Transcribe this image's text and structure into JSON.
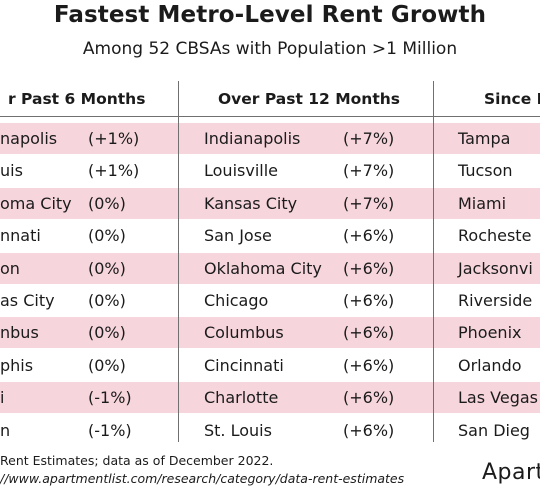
{
  "chart_data": {
    "type": "table",
    "title": "Fastest Metro-Level Rent Growth",
    "subtitle": "Among 52 CBSAs with Population >1 Million",
    "columns": [
      {
        "header": "r Past 6 Months",
        "rows": [
          {
            "metro": "napolis",
            "growth": "(+1%)"
          },
          {
            "metro": "uis",
            "growth": "(+1%)"
          },
          {
            "metro": "oma City",
            "growth": "(0%)"
          },
          {
            "metro": "nnati",
            "growth": "(0%)"
          },
          {
            "metro": "on",
            "growth": "(0%)"
          },
          {
            "metro": "as City",
            "growth": "(0%)"
          },
          {
            "metro": "nbus",
            "growth": "(0%)"
          },
          {
            "metro": "phis",
            "growth": "(0%)"
          },
          {
            "metro": "i",
            "growth": "(-1%)"
          },
          {
            "metro": "n",
            "growth": "(-1%)"
          }
        ]
      },
      {
        "header": "Over Past 12 Months",
        "rows": [
          {
            "metro": "Indianapolis",
            "growth": "(+7%)"
          },
          {
            "metro": "Louisville",
            "growth": "(+7%)"
          },
          {
            "metro": "Kansas City",
            "growth": "(+7%)"
          },
          {
            "metro": "San Jose",
            "growth": "(+6%)"
          },
          {
            "metro": "Oklahoma City",
            "growth": "(+6%)"
          },
          {
            "metro": "Chicago",
            "growth": "(+6%)"
          },
          {
            "metro": "Columbus",
            "growth": "(+6%)"
          },
          {
            "metro": "Cincinnati",
            "growth": "(+6%)"
          },
          {
            "metro": "Charlotte",
            "growth": "(+6%)"
          },
          {
            "metro": "St. Louis",
            "growth": "(+6%)"
          }
        ]
      },
      {
        "header": "Since M",
        "rows": [
          {
            "metro": "Tampa",
            "growth": ""
          },
          {
            "metro": "Tucson",
            "growth": ""
          },
          {
            "metro": "Miami",
            "growth": ""
          },
          {
            "metro": "Rocheste",
            "growth": ""
          },
          {
            "metro": "Jacksonvi",
            "growth": ""
          },
          {
            "metro": "Riverside",
            "growth": ""
          },
          {
            "metro": "Phoenix",
            "growth": ""
          },
          {
            "metro": "Orlando",
            "growth": ""
          },
          {
            "metro": "Las Vegas",
            "growth": ""
          },
          {
            "metro": "San Dieg",
            "growth": ""
          }
        ]
      }
    ],
    "row_band_color": "#f6d5dc",
    "highlighted_rows": [
      0,
      2,
      4,
      6,
      8
    ]
  },
  "footer": {
    "source": "Rent Estimates; data as of December 2022.",
    "url": "//www.apartmentlist.com/research/category/data-rent-estimates"
  },
  "logo": {
    "text": "Apart"
  }
}
